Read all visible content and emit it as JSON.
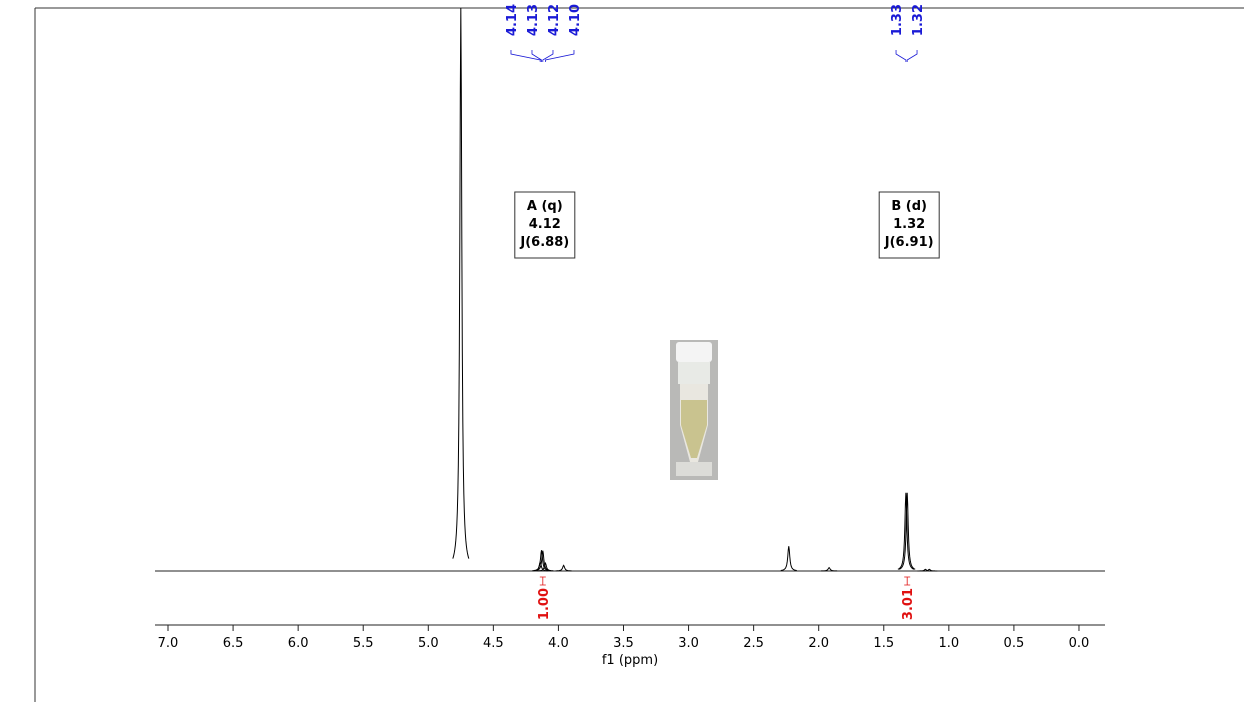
{
  "chart_data": {
    "type": "nmr",
    "xlabel": "f1 (ppm)",
    "xlim": [
      7.1,
      -0.2
    ],
    "ylim": [
      0,
      100
    ],
    "xticks": [
      {
        "value": 7,
        "label": "7.0"
      },
      6.5,
      {
        "value": 6,
        "label": "6.0"
      },
      5.5,
      {
        "value": 5,
        "label": "5.0"
      },
      4.5,
      {
        "value": 4,
        "label": "4.0"
      },
      3.5,
      {
        "value": 3,
        "label": "3.0"
      },
      2.5,
      {
        "value": 2,
        "label": "2.0"
      },
      1.5,
      {
        "value": 1,
        "label": "1.0"
      },
      0.5,
      {
        "value": 0,
        "label": "0.0"
      }
    ],
    "color": "#000000",
    "peaks": {
      "x": [
        4.75,
        4.14,
        4.13,
        4.12,
        4.1,
        3.96,
        2.23,
        1.92,
        1.33,
        1.32,
        1.18,
        1.15
      ],
      "values": [
        100,
        1.6,
        3.7,
        3.6,
        1.4,
        1,
        4.4,
        0.6,
        13.9,
        13.9,
        0.3,
        0.3
      ]
    },
    "peak_labels": [
      [
        {
          "value": 4.14,
          "label": "4.14"
        },
        {
          "value": 4.13,
          "label": "4.13"
        },
        {
          "value": 4.12,
          "label": "4.12"
        },
        {
          "value": 4.1,
          "label": "4.10"
        }
      ],
      [
        {
          "value": 1.33,
          "label": "1.33"
        },
        {
          "value": 1.32,
          "label": "1.32"
        }
      ]
    ],
    "peak_label_color": "#1a1ad6",
    "integrals": {
      "x": [
        4.12,
        1.32
      ],
      "values": [
        1.0,
        3.01
      ],
      "value_labels": [
        "1.00",
        "3.01"
      ],
      "color": "#e01010"
    },
    "annotations": [
      {
        "x": 4.12,
        "lines": [
          "A (q)",
          "4.12",
          "J(6.88)"
        ]
      },
      {
        "x": 1.32,
        "lines": [
          "B (d)",
          "1.32",
          "J(6.91)"
        ]
      }
    ]
  }
}
